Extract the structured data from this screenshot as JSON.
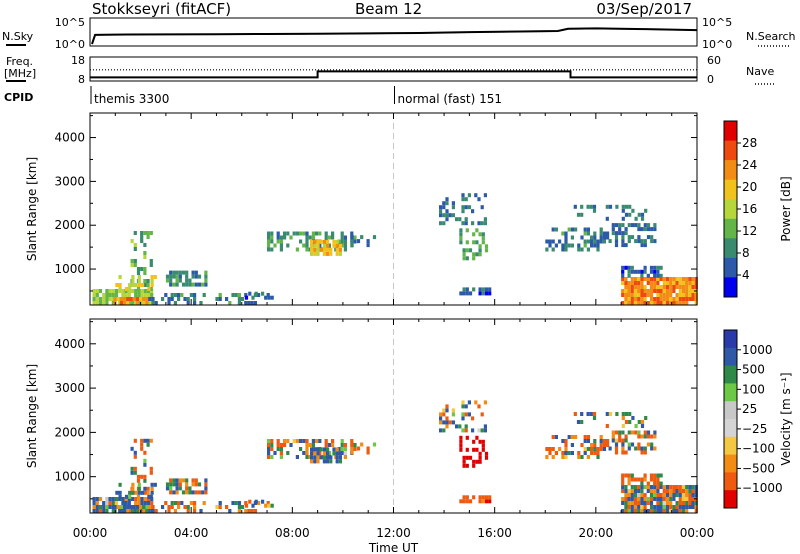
{
  "header": {
    "title": "Stokkseyri (fitACF)",
    "beam": "Beam 12",
    "date": "03/Sep/2017"
  },
  "colors": {
    "power_scale": [
      "#0000ee",
      "#2c5aa8",
      "#3a8a70",
      "#63b54a",
      "#b6d63c",
      "#f2c21c",
      "#f28c14",
      "#ee4a10",
      "#e00000"
    ],
    "velocity_scale": [
      "#2a3aa8",
      "#2f58a6",
      "#2f8a4a",
      "#6cc846",
      "#c8c8c8",
      "#d4d4d4",
      "#f4c842",
      "#f28c14",
      "#ee5a10",
      "#e00000"
    ],
    "divider": "#c8c8c8"
  },
  "chart_data": [
    {
      "type": "line",
      "panel": "noise",
      "y_left_label": "N.Sky",
      "y_left_ticks": [
        "10^5",
        "10^0"
      ],
      "y_right_label": "N.Search",
      "y_right_ticks": [
        "10^5",
        "10^0"
      ],
      "log_scale": true,
      "series": [
        {
          "name": "N.Sky",
          "style": "solid",
          "x": [
            0.08,
            0.2,
            1,
            3,
            5,
            7,
            9,
            11,
            13,
            15,
            17,
            18.5,
            18.9,
            20,
            22,
            24
          ],
          "y": [
            1,
            80,
            90,
            100,
            110,
            120,
            140,
            160,
            200,
            300,
            400,
            500,
            1500,
            1800,
            1300,
            800
          ]
        },
        {
          "name": "N.Search",
          "style": "dotted",
          "x": [
            0.08,
            0.2,
            1,
            3,
            5,
            7,
            9,
            11,
            13,
            15,
            17,
            18.5,
            18.9,
            20,
            22,
            24
          ],
          "y": [
            1,
            70,
            85,
            95,
            100,
            110,
            130,
            150,
            180,
            260,
            350,
            450,
            1300,
            1500,
            1100,
            700
          ]
        }
      ]
    },
    {
      "type": "line",
      "panel": "frequency",
      "y_left_label": [
        "Freq.",
        "[MHz]"
      ],
      "y_left_ticks": [
        "18",
        "8"
      ],
      "y_right_label": "Nave",
      "y_right_ticks": [
        "60",
        "0"
      ],
      "series": [
        {
          "name": "Freq.",
          "style": "solid",
          "x": [
            0,
            9,
            9,
            19,
            19,
            24
          ],
          "y": [
            9.5,
            9.5,
            12,
            12,
            9.5,
            9.5
          ]
        },
        {
          "name": "Nave",
          "style": "dotted",
          "x": [
            0,
            24
          ],
          "y": [
            28,
            28
          ]
        }
      ]
    },
    {
      "type": "table",
      "panel": "cpid",
      "label": "CPID",
      "segments": [
        {
          "start": 0,
          "text": "themis 3300"
        },
        {
          "start": 12,
          "text": "normal (fast) 151"
        }
      ]
    },
    {
      "type": "heatmap",
      "panel": "power",
      "ylabel": "Slant Range [km]",
      "yticks": [
        1000,
        2000,
        3000,
        4000
      ],
      "ylim": [
        180,
        4560
      ],
      "xlim": [
        0,
        24
      ],
      "colorbar_label": "Power [dB]",
      "colorbar_ticks": [
        "28",
        "24",
        "20",
        "16",
        "12",
        "8",
        "4"
      ],
      "vmin": 0,
      "vmax": 32,
      "regions": [
        {
          "t": [
            0.1,
            2.4
          ],
          "r": [
            180,
            520
          ],
          "value": 14,
          "density": 0.9
        },
        {
          "t": [
            0.8,
            2.3
          ],
          "r": [
            180,
            320
          ],
          "value": 24,
          "density": 0.8
        },
        {
          "t": [
            2.3,
            7.0
          ],
          "r": [
            180,
            400
          ],
          "value": 7,
          "density": 0.45
        },
        {
          "t": [
            1.6,
            2.4
          ],
          "r": [
            500,
            1800
          ],
          "value": 11,
          "density": 0.35
        },
        {
          "t": [
            1.0,
            2.6
          ],
          "r": [
            500,
            800
          ],
          "value": 18,
          "density": 0.4
        },
        {
          "t": [
            3.0,
            4.6
          ],
          "r": [
            600,
            900
          ],
          "value": 8,
          "density": 0.75
        },
        {
          "t": [
            6.0,
            7.2
          ],
          "r": [
            300,
            450
          ],
          "value": 5,
          "density": 0.6
        },
        {
          "t": [
            7.0,
            10.6
          ],
          "r": [
            1400,
            1850
          ],
          "value": 9,
          "density": 0.55
        },
        {
          "t": [
            8.7,
            9.9
          ],
          "r": [
            1300,
            1650
          ],
          "value": 20,
          "density": 0.8
        },
        {
          "t": [
            10.3,
            11.5
          ],
          "r": [
            1500,
            1700
          ],
          "value": 6,
          "density": 0.35
        },
        {
          "t": [
            13.8,
            15.6
          ],
          "r": [
            2000,
            2700
          ],
          "value": 6,
          "density": 0.35
        },
        {
          "t": [
            14.6,
            15.7
          ],
          "r": [
            1200,
            1900
          ],
          "value": 10,
          "density": 0.45
        },
        {
          "t": [
            14.6,
            15.8
          ],
          "r": [
            400,
            550
          ],
          "value": 4,
          "density": 0.85
        },
        {
          "t": [
            18.0,
            20.5
          ],
          "r": [
            1400,
            1900
          ],
          "value": 7,
          "density": 0.45
        },
        {
          "t": [
            20.5,
            22.3
          ],
          "r": [
            1500,
            2000
          ],
          "value": 6,
          "density": 0.55
        },
        {
          "t": [
            19.0,
            22.0
          ],
          "r": [
            2100,
            2400
          ],
          "value": 6,
          "density": 0.3
        },
        {
          "t": [
            21.0,
            24.0
          ],
          "r": [
            180,
            800
          ],
          "value": 24,
          "density": 0.9
        },
        {
          "t": [
            21.0,
            22.6
          ],
          "r": [
            800,
            1000
          ],
          "value": 5,
          "density": 0.75
        }
      ]
    },
    {
      "type": "heatmap",
      "panel": "velocity",
      "ylabel": "Slant Range [km]",
      "yticks": [
        1000,
        2000,
        3000,
        4000
      ],
      "ylim": [
        180,
        4560
      ],
      "xlim": [
        0,
        24
      ],
      "xticks": [
        "00:00",
        "04:00",
        "08:00",
        "12:00",
        "16:00",
        "20:00",
        "00:00"
      ],
      "xlabel": "Time UT",
      "colorbar_label": "Velocity [m s⁻¹]",
      "colorbar_ticks": [
        "1000",
        "500",
        "100",
        "25",
        "−25",
        "−100",
        "−500",
        "−1000"
      ],
      "vmin": -1000,
      "vmax": 1000,
      "regions": [
        {
          "t": [
            0.1,
            2.4
          ],
          "r": [
            180,
            520
          ],
          "value": 100,
          "density": 0.9
        },
        {
          "t": [
            0.8,
            2.3
          ],
          "r": [
            180,
            320
          ],
          "value": 80,
          "density": 0.8
        },
        {
          "t": [
            2.3,
            7.0
          ],
          "r": [
            180,
            400
          ],
          "value": 0,
          "density": 0.45
        },
        {
          "t": [
            1.6,
            2.4
          ],
          "r": [
            500,
            1800
          ],
          "value": -60,
          "density": 0.35
        },
        {
          "t": [
            1.0,
            2.6
          ],
          "r": [
            500,
            800
          ],
          "value": 150,
          "density": 0.4
        },
        {
          "t": [
            3.0,
            4.6
          ],
          "r": [
            600,
            900
          ],
          "value": 0,
          "density": 0.75
        },
        {
          "t": [
            6.0,
            7.2
          ],
          "r": [
            300,
            450
          ],
          "value": 0,
          "density": 0.6
        },
        {
          "t": [
            7.0,
            10.6
          ],
          "r": [
            1400,
            1850
          ],
          "value": 0,
          "density": 0.55
        },
        {
          "t": [
            8.7,
            9.9
          ],
          "r": [
            1300,
            1650
          ],
          "value": 150,
          "density": 0.8
        },
        {
          "t": [
            10.3,
            11.5
          ],
          "r": [
            1500,
            1700
          ],
          "value": -80,
          "density": 0.35
        },
        {
          "t": [
            13.8,
            15.6
          ],
          "r": [
            2000,
            2700
          ],
          "value": 0,
          "density": 0.35
        },
        {
          "t": [
            14.6,
            15.7
          ],
          "r": [
            1200,
            1900
          ],
          "value": -800,
          "density": 0.45
        },
        {
          "t": [
            14.6,
            15.8
          ],
          "r": [
            400,
            550
          ],
          "value": -300,
          "density": 0.85
        },
        {
          "t": [
            18.0,
            20.5
          ],
          "r": [
            1400,
            1900
          ],
          "value": 0,
          "density": 0.45
        },
        {
          "t": [
            20.5,
            22.3
          ],
          "r": [
            1500,
            2000
          ],
          "value": 0,
          "density": 0.55
        },
        {
          "t": [
            19.0,
            22.0
          ],
          "r": [
            2100,
            2400
          ],
          "value": 0,
          "density": 0.3
        },
        {
          "t": [
            21.0,
            24.0
          ],
          "r": [
            180,
            800
          ],
          "value": 0,
          "density": 0.9
        },
        {
          "t": [
            21.0,
            22.6
          ],
          "r": [
            800,
            1000
          ],
          "value": -150,
          "density": 0.75
        }
      ]
    }
  ]
}
